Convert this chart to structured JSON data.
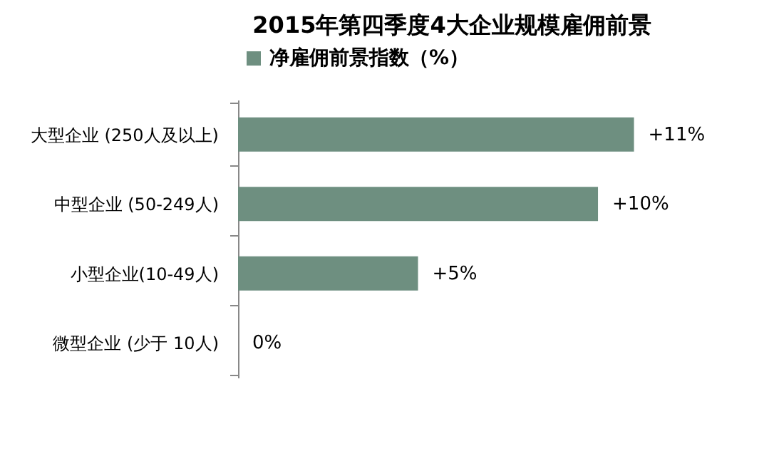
{
  "chart_data": {
    "type": "bar",
    "orientation": "horizontal",
    "title": "2015年第四季度4大企业规模雇佣前景",
    "categories": [
      "大型企业 (250人及以上)",
      "中型企业 (50-249人)",
      "小型企业(10-49人)",
      "微型企业 (少于 10人)"
    ],
    "series": [
      {
        "name": "净雇佣前景指数（%）",
        "color": "#6e8f80",
        "values": [
          11,
          10,
          5,
          0
        ],
        "value_labels": [
          "+11%",
          "+10%",
          "+5%",
          "0%"
        ]
      }
    ],
    "legend": "top",
    "grid": false
  }
}
